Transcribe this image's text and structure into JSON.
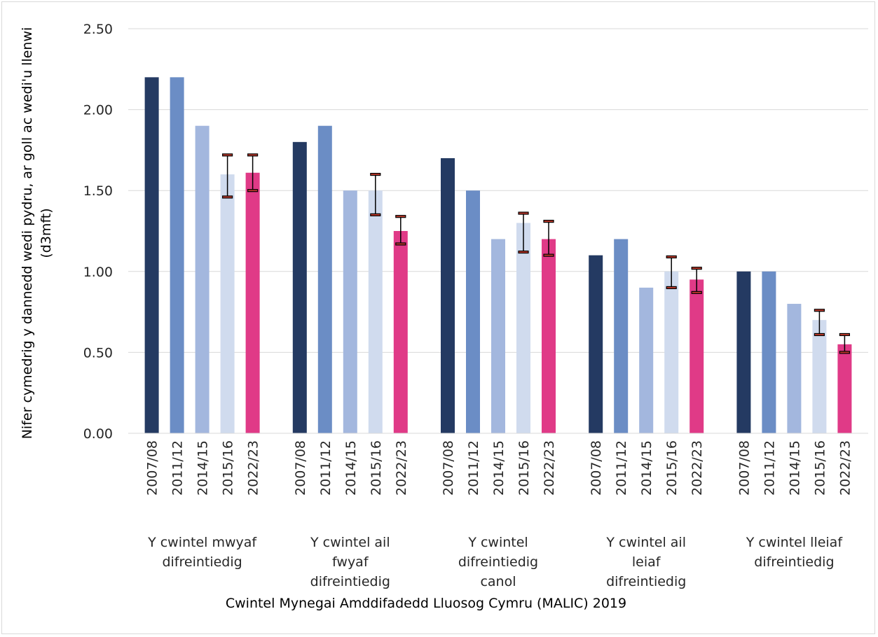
{
  "chart_data": {
    "type": "bar",
    "title": "",
    "xlabel": "Cwintel Mynegai Amddifadedd Lluosog Cymru (MALIC) 2019",
    "ylabel_lines": [
      "Nifer cymedrig y dannedd wedi pydru, ar goll ac wedi'u llenwi",
      "(d3mft)"
    ],
    "ylim": [
      0,
      2.5
    ],
    "yticks": [
      "0.00",
      "0.50",
      "1.00",
      "1.50",
      "2.00",
      "2.50"
    ],
    "grid": true,
    "legend": "none",
    "series": [
      {
        "name": "2007/08",
        "color": "#243a62"
      },
      {
        "name": "2011/12",
        "color": "#6b8dc5"
      },
      {
        "name": "2014/15",
        "color": "#a3b7de"
      },
      {
        "name": "2015/16",
        "color": "#d0dbee"
      },
      {
        "name": "2022/23",
        "color": "#e03a87"
      }
    ],
    "groups": [
      {
        "label_lines": [
          "Y cwintel mwyaf",
          "difreintiedig"
        ],
        "bars": [
          {
            "year": "2007/08",
            "value": 2.2
          },
          {
            "year": "2011/12",
            "value": 2.2
          },
          {
            "year": "2014/15",
            "value": 1.9
          },
          {
            "year": "2015/16",
            "value": 1.6,
            "error": [
              1.46,
              1.72
            ]
          },
          {
            "year": "2022/23",
            "value": 1.61,
            "error": [
              1.5,
              1.72
            ]
          }
        ]
      },
      {
        "label_lines": [
          "Y cwintel ail",
          "fwyaf",
          "difreintiedig"
        ],
        "bars": [
          {
            "year": "2007/08",
            "value": 1.8
          },
          {
            "year": "2011/12",
            "value": 1.9
          },
          {
            "year": "2014/15",
            "value": 1.5
          },
          {
            "year": "2015/16",
            "value": 1.5,
            "error": [
              1.35,
              1.6
            ]
          },
          {
            "year": "2022/23",
            "value": 1.25,
            "error": [
              1.17,
              1.34
            ]
          }
        ]
      },
      {
        "label_lines": [
          "Y cwintel",
          "difreintiedig",
          "canol"
        ],
        "bars": [
          {
            "year": "2007/08",
            "value": 1.7
          },
          {
            "year": "2011/12",
            "value": 1.5
          },
          {
            "year": "2014/15",
            "value": 1.2
          },
          {
            "year": "2015/16",
            "value": 1.3,
            "error": [
              1.12,
              1.36
            ]
          },
          {
            "year": "2022/23",
            "value": 1.2,
            "error": [
              1.1,
              1.31
            ]
          }
        ]
      },
      {
        "label_lines": [
          "Y cwintel ail",
          "leiaf",
          "difreintiedig"
        ],
        "bars": [
          {
            "year": "2007/08",
            "value": 1.1
          },
          {
            "year": "2011/12",
            "value": 1.2
          },
          {
            "year": "2014/15",
            "value": 0.9
          },
          {
            "year": "2015/16",
            "value": 1.0,
            "error": [
              0.9,
              1.09
            ]
          },
          {
            "year": "2022/23",
            "value": 0.95,
            "error": [
              0.87,
              1.02
            ]
          }
        ]
      },
      {
        "label_lines": [
          "Y cwintel lleiaf",
          "difreintiedig"
        ],
        "bars": [
          {
            "year": "2007/08",
            "value": 1.0
          },
          {
            "year": "2011/12",
            "value": 1.0
          },
          {
            "year": "2014/15",
            "value": 0.8
          },
          {
            "year": "2015/16",
            "value": 0.7,
            "error": [
              0.61,
              0.76
            ]
          },
          {
            "year": "2022/23",
            "value": 0.55,
            "error": [
              0.5,
              0.61
            ]
          }
        ]
      }
    ]
  }
}
